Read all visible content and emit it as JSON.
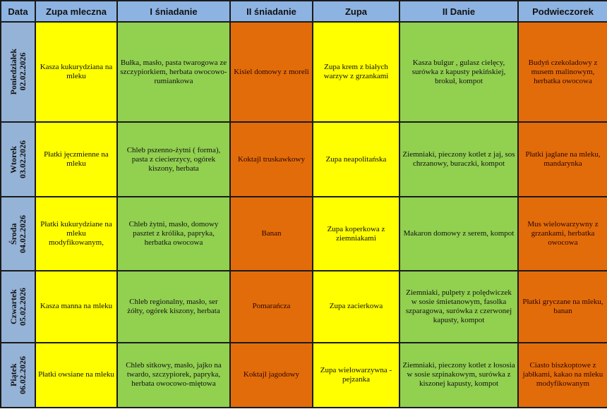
{
  "headers": [
    "Data",
    "Zupa mleczna",
    "I śniadanie",
    "II śniadanie",
    "Zupa",
    "II Danie",
    "Podwieczorek"
  ],
  "colors": {
    "header": "#8db3e2",
    "day": "#95b3d7",
    "yellow": "#ffff00",
    "green": "#92d050",
    "orange": "#e36c0a"
  },
  "rows": [
    {
      "day": "Poniedziałek",
      "date": "02.02.2026",
      "cells": [
        "Kasza kukurydziana na mleku",
        "Bułka, masło, pasta twarogowa ze szczypiorkiem, herbata owocowo- rumiankowa",
        "Kisiel domowy z moreli",
        "Zupa krem z białych warzyw z grzankami",
        "Kasza bulgur , gulasz cielęcy, surówka z kapusty pekińskiej, brokuł, kompot",
        "Budyń czekoladowy z musem malinowym, herbatka owocowa"
      ]
    },
    {
      "day": "Wtorek",
      "date": "03.02.2026",
      "cells": [
        "Płatki jęczmienne na mleku",
        "Chleb pszenno-żytni ( forma), pasta z ciecierzycy, ogórek kiszony, herbata",
        "Koktajl truskawkowy",
        "Zupa neapolitańska",
        "Ziemniaki, pieczony kotlet z jaj, sos chrzanowy, buraczki, kompot",
        "Płatki jaglane na mleku, mandarynka"
      ]
    },
    {
      "day": "Środa",
      "date": "04.02.2026",
      "cells": [
        "Płatki kukurydziane na mleku modyfikowanym,",
        "Chleb żytni, masło, domowy pasztet z królika, papryka, herbatka owocowa",
        "Banan",
        "Zupa koperkowa z ziemniakami",
        "Makaron domowy z serem, kompot",
        "Mus wielowarzywny z grzankami, herbatka owocowa"
      ]
    },
    {
      "day": "Czwartek",
      "date": "05.02.2026",
      "cells": [
        "Kasza manna na mleku",
        "Chleb regionalny, masło, ser żółty, ogórek kiszony,  herbata",
        "Pomarańcza",
        "Zupa zacierkowa",
        "Ziemniaki, pulpety z polędwiczek w sosie śmietanowym, fasolka szparagowa, surówka z czerwonej kapusty, kompot",
        "Płatki gryczane na mleku, banan"
      ]
    },
    {
      "day": "Piątek",
      "date": "06.02.2026",
      "cells": [
        "Płatki owsiane na mleku",
        "Chleb sitkowy, masło,  jajko na twardo, szczypiorek, papryka, herbata owocowo-miętowa",
        "Koktajl jagodowy",
        "Zupa wielowarzywna - pejzanka",
        "Ziemniaki, pieczony kotlet z łososia w sosie szpinakowym, surówka z kiszonej kapusty, kompot",
        "Ciasto biszkoptowe z jabłkami, kakao na mleku modyfikowanym"
      ]
    }
  ]
}
